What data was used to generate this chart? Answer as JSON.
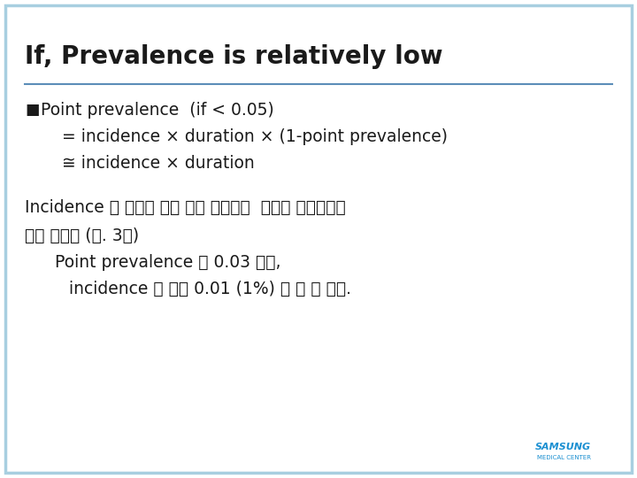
{
  "title": "If, Prevalence is relatively low",
  "title_fontsize": 20,
  "title_color": "#1a1a1a",
  "bg_color": "#ffffff",
  "border_color": "#a8cfe0",
  "border_linewidth": 2.5,
  "separator_color": "#5b8db8",
  "bullet_char": "■",
  "bullet_text": " Point prevalence  (if < 0.05)",
  "line2": "= incidence × duration × (1-point prevalence)",
  "line3": "≅ incidence × duration",
  "para_line1": "Incidence 가 시기에 관계 없이 일정하고  질병의 유병기간을",
  "para_line2": "알고 있다면 (예. 3년)",
  "para_line3": "  Point prevalence 가 0.03 라면,",
  "para_line4": "   incidence 는 연간 0.01 (1%) 로 볼 수 있음.",
  "body_fontsize": 13.5,
  "samsung_color": "#1a8fd1",
  "samsung_text": "SAMSUNG",
  "samsung_sub": "MEDICAL CENTER"
}
